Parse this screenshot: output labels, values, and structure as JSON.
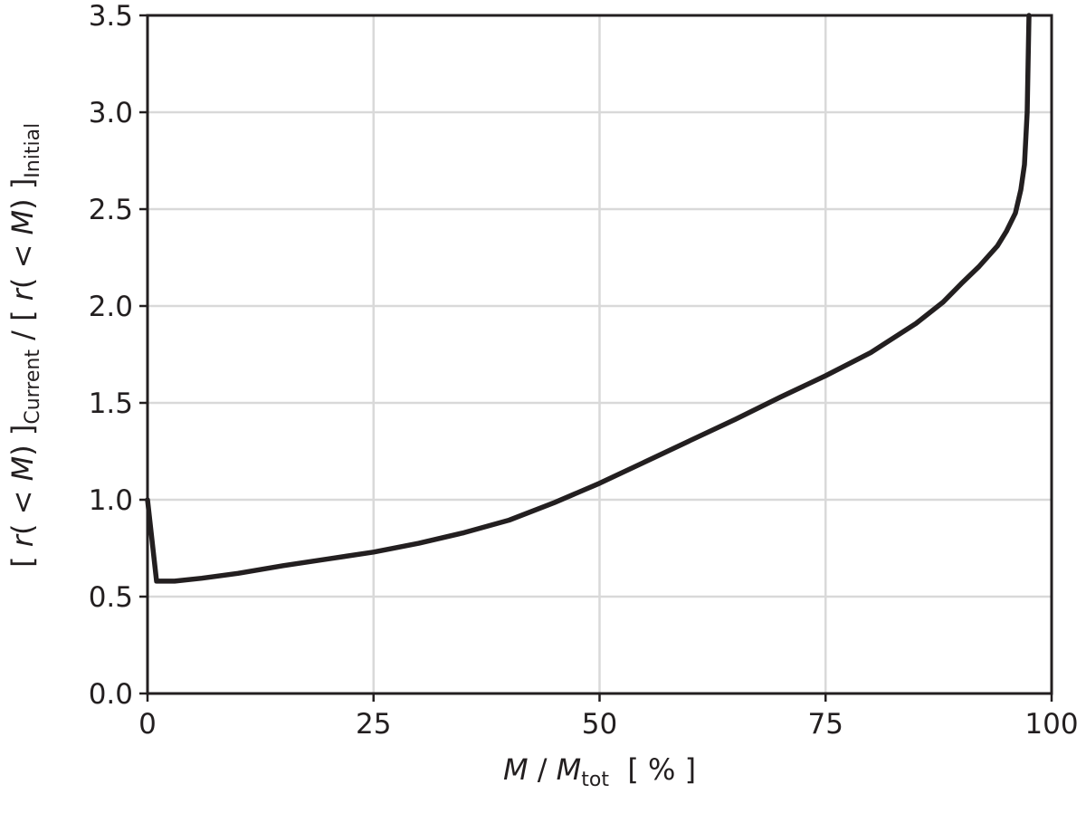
{
  "chart_data": {
    "type": "line",
    "xlabel": {
      "main": "M",
      "sep": " / ",
      "den": "M",
      "den_sub": "tot",
      "unit": "[ % ]"
    },
    "ylabel": {
      "open": "[ ",
      "r1": "r",
      "mid1": "( < ",
      "m1": "M",
      "close1": ") ]",
      "sub1": "Current",
      "slash": " / [ ",
      "r2": "r",
      "mid2": "( < ",
      "m2": "M",
      "close2": ") ]",
      "sub2": "Initial"
    },
    "xlim": [
      0,
      100
    ],
    "ylim": [
      0,
      3.5
    ],
    "xticks": [
      0,
      25,
      50,
      75,
      100
    ],
    "xtick_labels": [
      "0",
      "25",
      "50",
      "75",
      "100"
    ],
    "yticks": [
      0,
      0.5,
      1.0,
      1.5,
      2.0,
      2.5,
      3.0,
      3.5
    ],
    "ytick_labels": [
      "0.0",
      "0.5",
      "1.0",
      "1.5",
      "2.0",
      "2.5",
      "3.0",
      "3.5"
    ],
    "grid": true,
    "series": [
      {
        "color": "#231f20",
        "x": [
          0,
          1,
          3,
          6,
          10,
          15,
          20,
          25,
          30,
          35,
          40,
          45,
          50,
          55,
          60,
          65,
          70,
          75,
          80,
          85,
          88,
          90,
          92,
          94,
          95,
          96,
          96.6,
          97.0,
          97.3,
          97.5
        ],
        "y": [
          1.0,
          0.58,
          0.58,
          0.595,
          0.62,
          0.66,
          0.695,
          0.73,
          0.775,
          0.83,
          0.895,
          0.985,
          1.085,
          1.195,
          1.305,
          1.415,
          1.53,
          1.64,
          1.76,
          1.91,
          2.02,
          2.115,
          2.205,
          2.31,
          2.385,
          2.48,
          2.6,
          2.73,
          3.0,
          3.5
        ]
      }
    ]
  }
}
